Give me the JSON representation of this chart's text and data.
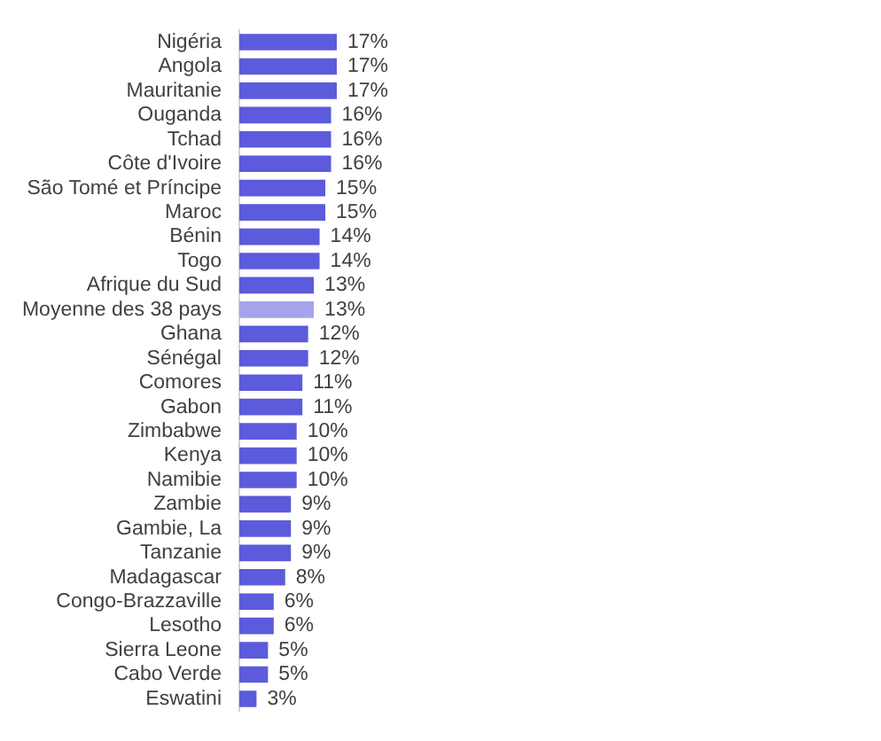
{
  "chart_data": {
    "type": "bar",
    "orientation": "horizontal",
    "categories": [
      "Nigéria",
      "Angola",
      "Mauritanie",
      "Ouganda",
      "Tchad",
      "Côte d'Ivoire",
      "São Tomé et Príncipe",
      "Maroc",
      "Bénin",
      "Togo",
      "Afrique du Sud",
      "Moyenne des 38 pays",
      "Ghana",
      "Sénégal",
      "Comores",
      "Gabon",
      "Zimbabwe",
      "Kenya",
      "Namibie",
      "Zambie",
      "Gambie, La",
      "Tanzanie",
      "Madagascar",
      "Congo-Brazzaville",
      "Lesotho",
      "Sierra Leone",
      "Cabo Verde",
      "Eswatini"
    ],
    "values": [
      17,
      17,
      17,
      16,
      16,
      16,
      15,
      15,
      14,
      14,
      13,
      13,
      12,
      12,
      11,
      11,
      10,
      10,
      10,
      9,
      9,
      9,
      8,
      6,
      6,
      5,
      5,
      3
    ],
    "value_labels": [
      "17%",
      "17%",
      "17%",
      "16%",
      "16%",
      "16%",
      "15%",
      "15%",
      "14%",
      "14%",
      "13%",
      "13%",
      "12%",
      "12%",
      "11%",
      "11%",
      "10%",
      "10%",
      "10%",
      "9%",
      "9%",
      "9%",
      "8%",
      "6%",
      "6%",
      "5%",
      "5%",
      "3%"
    ],
    "colors": [
      "#5b5bdb",
      "#5b5bdb",
      "#5b5bdb",
      "#5b5bdb",
      "#5b5bdb",
      "#5b5bdb",
      "#5b5bdb",
      "#5b5bdb",
      "#5b5bdb",
      "#5b5bdb",
      "#5b5bdb",
      "#a4a4ec",
      "#5b5bdb",
      "#5b5bdb",
      "#5b5bdb",
      "#5b5bdb",
      "#5b5bdb",
      "#5b5bdb",
      "#5b5bdb",
      "#5b5bdb",
      "#5b5bdb",
      "#5b5bdb",
      "#5b5bdb",
      "#5b5bdb",
      "#5b5bdb",
      "#5b5bdb",
      "#5b5bdb",
      "#5b5bdb"
    ],
    "tick_labels": "y"
  }
}
